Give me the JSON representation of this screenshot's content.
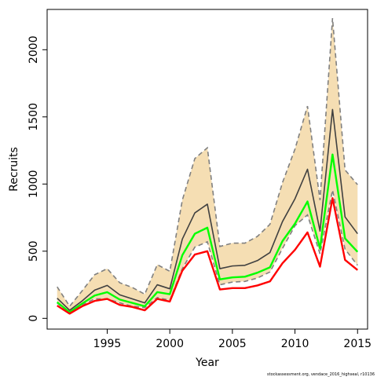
{
  "chart_data": {
    "type": "line",
    "xlabel": "Year",
    "ylabel": "Recruits",
    "xlim": [
      1990.2,
      2015.8
    ],
    "ylim": [
      -80,
      2300
    ],
    "x_ticks": [
      1995,
      2000,
      2005,
      2010,
      2015
    ],
    "y_ticks": [
      0,
      500,
      1000,
      1500,
      2000
    ],
    "grid": false,
    "legend": "none",
    "x": [
      1991,
      1992,
      1993,
      1994,
      1995,
      1996,
      1997,
      1998,
      1999,
      2000,
      2001,
      2002,
      2003,
      2004,
      2005,
      2006,
      2007,
      2008,
      2009,
      2010,
      2011,
      2012,
      2013,
      2014,
      2015
    ],
    "band": {
      "upper": [
        235,
        90,
        205,
        325,
        370,
        265,
        230,
        180,
        400,
        350,
        880,
        1190,
        1270,
        535,
        560,
        560,
        610,
        700,
        1010,
        1260,
        1580,
        880,
        2235,
        1105,
        995
      ],
      "lower": [
        115,
        35,
        100,
        145,
        145,
        115,
        90,
        80,
        155,
        135,
        370,
        530,
        570,
        250,
        270,
        275,
        300,
        345,
        520,
        690,
        770,
        480,
        955,
        515,
        395
      ]
    },
    "series": [
      {
        "values": [
          150,
          60,
          130,
          210,
          245,
          175,
          145,
          115,
          250,
          220,
          590,
          785,
          850,
          370,
          390,
          395,
          430,
          490,
          720,
          890,
          1110,
          650,
          1555,
          755,
          630
        ],
        "color": "#404040",
        "dash": "solid"
      },
      {
        "values": [
          120,
          45,
          110,
          170,
          195,
          140,
          115,
          90,
          195,
          180,
          470,
          630,
          675,
          290,
          305,
          310,
          340,
          380,
          575,
          705,
          870,
          520,
          1220,
          595,
          495
        ],
        "color": "#00ff00",
        "dash": "solid"
      },
      {
        "values": [
          95,
          35,
          90,
          130,
          145,
          100,
          85,
          60,
          145,
          125,
          355,
          475,
          500,
          215,
          225,
          225,
          245,
          275,
          410,
          510,
          640,
          385,
          895,
          435,
          360
        ],
        "color": "#ff0000",
        "dash": "solid"
      }
    ],
    "colors": {
      "band_fill": "#f5deb3",
      "band_edge": "#808080",
      "axis": "#000000"
    }
  },
  "credit": "stockassessment.org, vendace_2016_highseal, r10136"
}
